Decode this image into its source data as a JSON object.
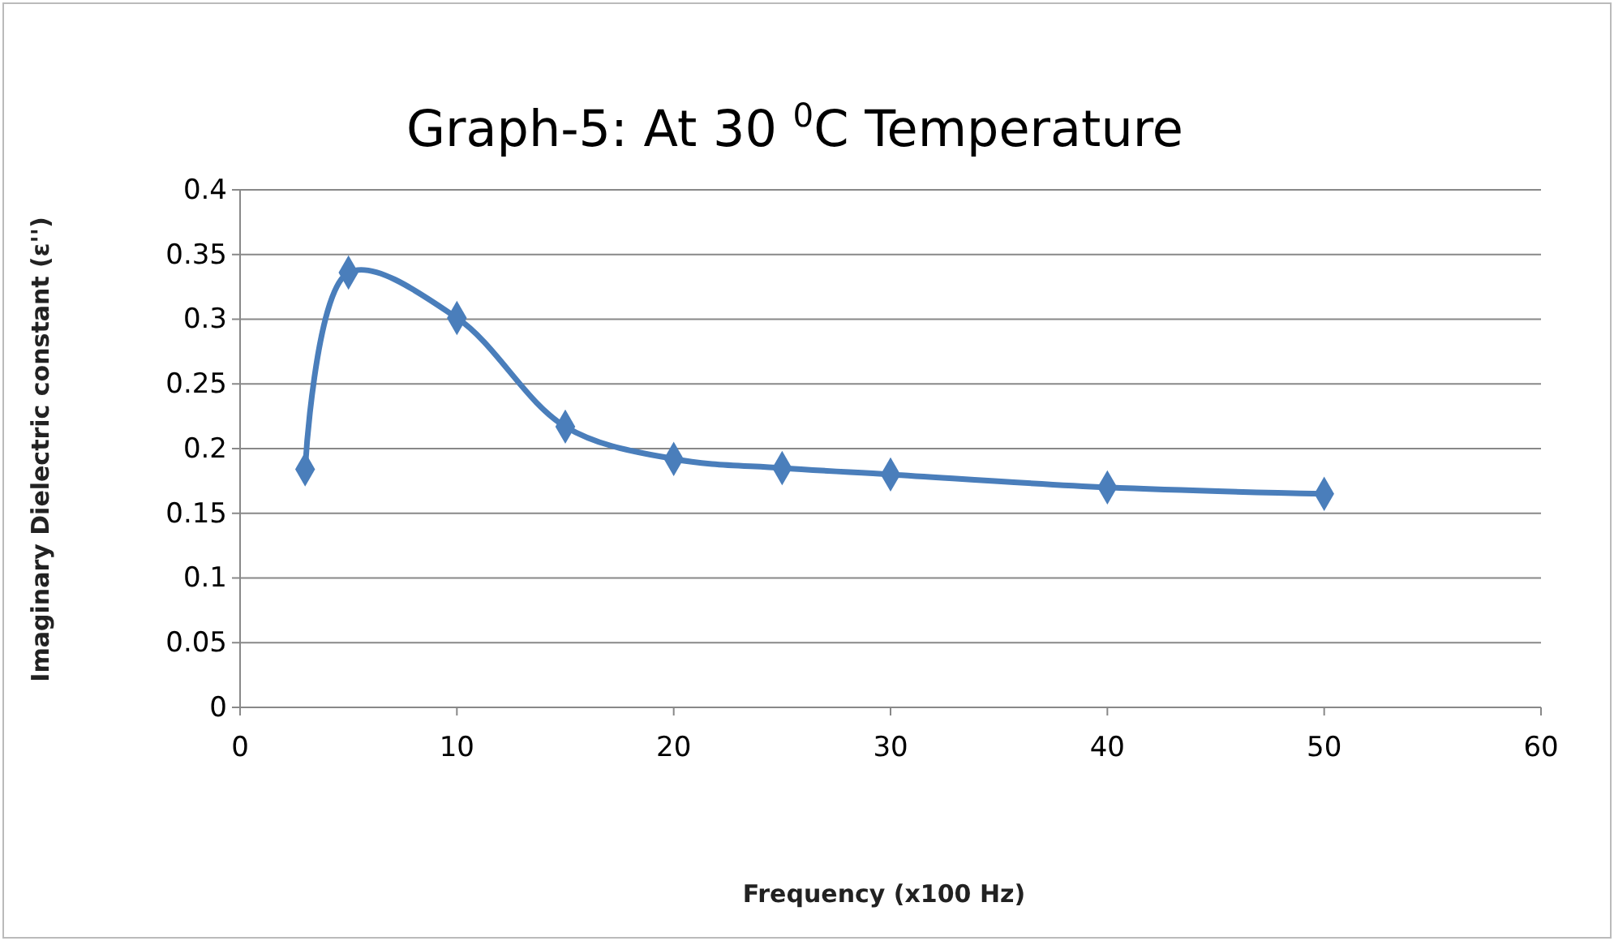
{
  "chart_data": {
    "type": "line",
    "title": "Graph-5: At 30 $^{0}$C Temperature",
    "xlabel": "Frequency (x100 Hz)",
    "ylabel": "Imaginary Dielectric constant (ε'')",
    "x": [
      3,
      5,
      10,
      15,
      20,
      25,
      30,
      40,
      50
    ],
    "series": [
      {
        "color": "#4a7ebb",
        "values": [
          0.184,
          0.336,
          0.301,
          0.217,
          0.192,
          0.185,
          0.18,
          0.17,
          0.165
        ]
      }
    ],
    "xlim": [
      0,
      60
    ],
    "xticks": [
      0,
      10,
      20,
      30,
      40,
      50,
      60
    ],
    "ylim": [
      0,
      0.4
    ],
    "yticks": [
      0,
      0.05,
      0.1,
      0.15,
      0.2,
      0.25,
      0.3,
      0.35,
      0.4
    ],
    "grid": "y",
    "marker": "diamond",
    "line_style": "solid"
  }
}
